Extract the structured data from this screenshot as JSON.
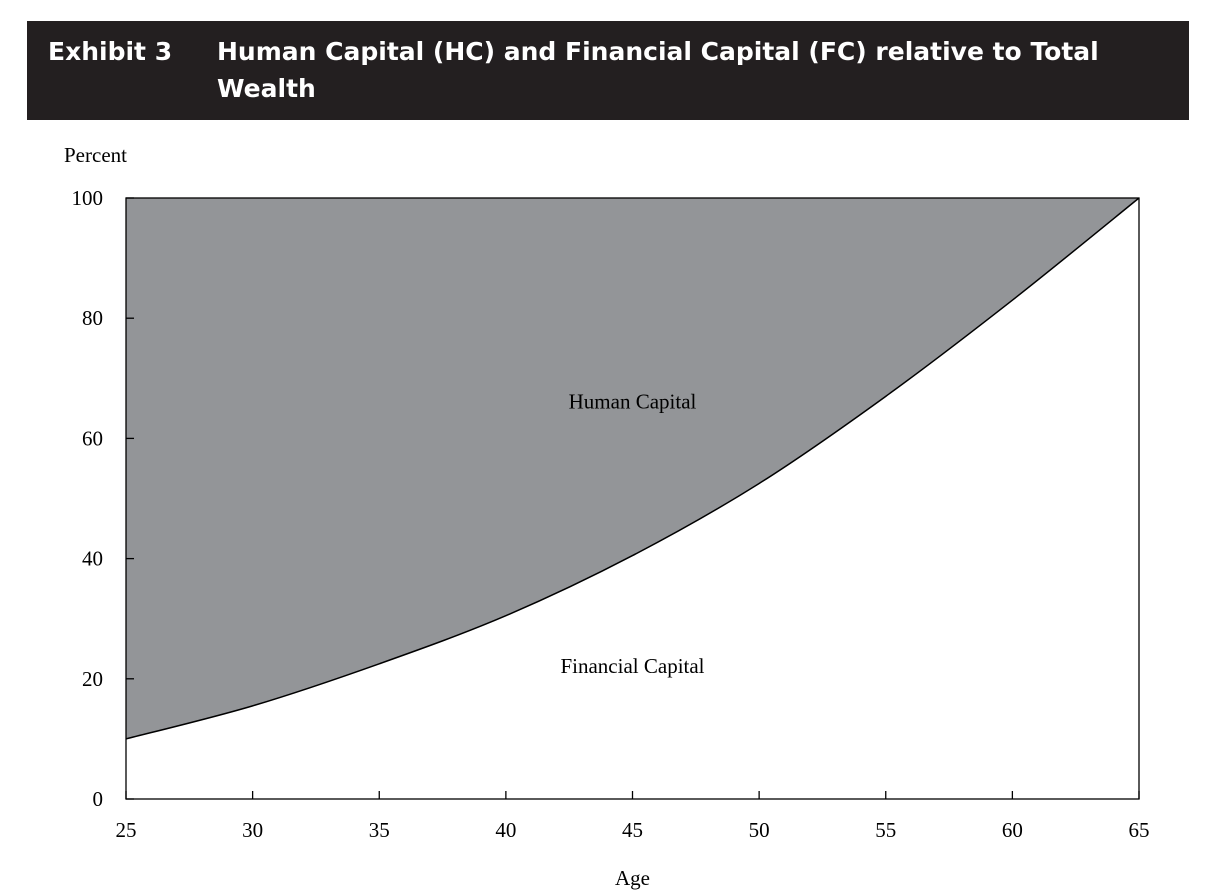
{
  "header": {
    "exhibit": "Exhibit 3",
    "title": "Human Capital (HC) and Financial Capital (FC) relative to Total Wealth"
  },
  "chart_data": {
    "type": "area",
    "ylabel": "Percent",
    "xlabel": "Age",
    "xlim": [
      25,
      65
    ],
    "ylim": [
      0,
      100
    ],
    "xticks": [
      25,
      30,
      35,
      40,
      45,
      50,
      55,
      60,
      65
    ],
    "yticks": [
      0,
      20,
      40,
      60,
      80,
      100
    ],
    "grid": false,
    "x": [
      25,
      30,
      35,
      40,
      45,
      50,
      55,
      60,
      65
    ],
    "series": [
      {
        "name": "Financial Capital",
        "values": [
          10,
          15.5,
          22.5,
          30.5,
          40.5,
          52.5,
          67,
          83,
          100
        ],
        "color": "#ffffff"
      },
      {
        "name": "Human Capital",
        "values": [
          90,
          84.5,
          77.5,
          69.5,
          59.5,
          47.5,
          33,
          17,
          0
        ],
        "color": "#939598"
      }
    ],
    "annotations": [
      {
        "text": "Human Capital",
        "x": 45,
        "y": 65
      },
      {
        "text": "Financial Capital",
        "x": 45,
        "y": 21
      }
    ]
  }
}
